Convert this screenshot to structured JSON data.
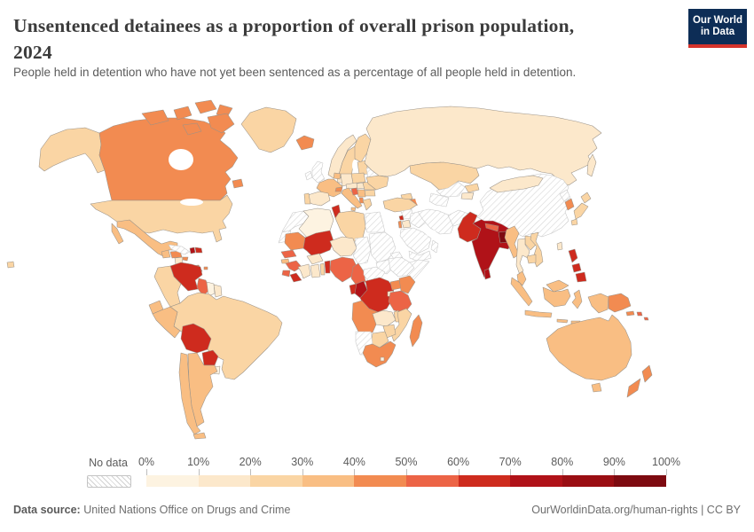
{
  "header": {
    "title_line1": "Unsentenced detainees as a proportion of overall prison population,",
    "title_line2": "2024",
    "subtitle": "People held in detention who have not yet been sentenced as a percentage of all people held in detention.",
    "logo": {
      "line1": "Our World",
      "line2": "in Data",
      "bg_color": "#0d2d56",
      "bar_color": "#d5332b"
    }
  },
  "legend": {
    "no_data_label": "No data",
    "tick_labels": [
      "0%",
      "10%",
      "20%",
      "30%",
      "40%",
      "50%",
      "60%",
      "70%",
      "80%",
      "90%",
      "100%"
    ]
  },
  "footer": {
    "source_label": "Data source:",
    "source_value": " United Nations Office on Drugs and Crime",
    "credit": "OurWorldinData.org/human-rights | CC BY"
  },
  "chart_data": {
    "type": "choropleth",
    "title": "Unsentenced detainees as a proportion of overall prison population, 2024",
    "unit": "%",
    "legend_position": "bottom",
    "bins": [
      {
        "range": "0-10%",
        "color": "#FDF3E1"
      },
      {
        "range": "10-20%",
        "color": "#FCE8CB"
      },
      {
        "range": "20-30%",
        "color": "#FAD5A4"
      },
      {
        "range": "30-40%",
        "color": "#F9BE83"
      },
      {
        "range": "40-50%",
        "color": "#F28B51"
      },
      {
        "range": "50-60%",
        "color": "#EC6446"
      },
      {
        "range": "60-70%",
        "color": "#CE2B1E"
      },
      {
        "range": "70-80%",
        "color": "#B01218"
      },
      {
        "range": "80-90%",
        "color": "#9A0E13"
      },
      {
        "range": "90-100%",
        "color": "#7D0A10"
      }
    ],
    "no_data": {
      "label": "No data",
      "pattern": "diagonal-hatch"
    },
    "countries": [
      {
        "id": "united-states",
        "name": "United States",
        "value_bin": "20-30%"
      },
      {
        "id": "canada",
        "name": "Canada",
        "value_bin": "40-50%"
      },
      {
        "id": "greenland",
        "name": "Greenland",
        "value_bin": "20-30%"
      },
      {
        "id": "mexico",
        "name": "Mexico",
        "value_bin": "30-40%"
      },
      {
        "id": "guatemala",
        "name": "Guatemala",
        "value_bin": "30-40%"
      },
      {
        "id": "honduras",
        "name": "Honduras",
        "value_bin": "40-50%"
      },
      {
        "id": "nicaragua",
        "name": "Nicaragua",
        "value_bin": "10-20%"
      },
      {
        "id": "costa-rica",
        "name": "Costa Rica",
        "value_bin": "20-30%"
      },
      {
        "id": "panama",
        "name": "Panama",
        "value_bin": "50-60%"
      },
      {
        "id": "cuba",
        "name": "Cuba",
        "value_bin": "No data"
      },
      {
        "id": "jamaica",
        "name": "Jamaica",
        "value_bin": "40-50%"
      },
      {
        "id": "haiti",
        "name": "Haiti",
        "value_bin": "70-80%"
      },
      {
        "id": "dominican-republic",
        "name": "Dominican Republic",
        "value_bin": "60-70%"
      },
      {
        "id": "trinidad-and-tobago",
        "name": "Trinidad and Tobago",
        "value_bin": "40-50%"
      },
      {
        "id": "venezuela",
        "name": "Venezuela",
        "value_bin": "60-70%"
      },
      {
        "id": "colombia",
        "name": "Colombia",
        "value_bin": "20-30%"
      },
      {
        "id": "guyana",
        "name": "Guyana",
        "value_bin": "50-60%"
      },
      {
        "id": "suriname",
        "name": "Suriname",
        "value_bin": "0-10%"
      },
      {
        "id": "french-guiana",
        "name": "French Guiana",
        "value_bin": "10-20%"
      },
      {
        "id": "ecuador",
        "name": "Ecuador",
        "value_bin": "30-40%"
      },
      {
        "id": "peru",
        "name": "Peru",
        "value_bin": "30-40%"
      },
      {
        "id": "brazil",
        "name": "Brazil",
        "value_bin": "20-30%"
      },
      {
        "id": "bolivia",
        "name": "Bolivia",
        "value_bin": "60-70%"
      },
      {
        "id": "paraguay",
        "name": "Paraguay",
        "value_bin": "60-70%"
      },
      {
        "id": "chile",
        "name": "Chile",
        "value_bin": "30-40%"
      },
      {
        "id": "argentina",
        "name": "Argentina",
        "value_bin": "30-40%"
      },
      {
        "id": "uruguay",
        "name": "Uruguay",
        "value_bin": "0-10%"
      },
      {
        "id": "iceland",
        "name": "Iceland",
        "value_bin": "40-50%"
      },
      {
        "id": "united-kingdom",
        "name": "United Kingdom",
        "value_bin": "No data"
      },
      {
        "id": "ireland",
        "name": "Ireland",
        "value_bin": "No data"
      },
      {
        "id": "norway",
        "name": "Norway",
        "value_bin": "10-20%"
      },
      {
        "id": "sweden",
        "name": "Sweden",
        "value_bin": "20-30%"
      },
      {
        "id": "finland",
        "name": "Finland",
        "value_bin": "20-30%"
      },
      {
        "id": "denmark",
        "name": "Denmark",
        "value_bin": "10-20%"
      },
      {
        "id": "germany",
        "name": "Germany",
        "value_bin": "10-20%"
      },
      {
        "id": "netherlands",
        "name": "Netherlands",
        "value_bin": "30-40%"
      },
      {
        "id": "france",
        "name": "France",
        "value_bin": "30-40%"
      },
      {
        "id": "switzerland",
        "name": "Switzerland",
        "value_bin": "40-50%"
      },
      {
        "id": "austria",
        "name": "Austria",
        "value_bin": "10-20%"
      },
      {
        "id": "spain",
        "name": "Spain",
        "value_bin": "10-20%"
      },
      {
        "id": "portugal",
        "name": "Portugal",
        "value_bin": "20-30%"
      },
      {
        "id": "italy",
        "name": "Italy",
        "value_bin": "30-40%"
      },
      {
        "id": "croatia",
        "name": "Croatia",
        "value_bin": "50-60%"
      },
      {
        "id": "serbia",
        "name": "Serbia",
        "value_bin": "30-40%"
      },
      {
        "id": "albania",
        "name": "Albania",
        "value_bin": "40-50%"
      },
      {
        "id": "greece",
        "name": "Greece",
        "value_bin": "20-30%"
      },
      {
        "id": "hungary",
        "name": "Hungary",
        "value_bin": "10-20%"
      },
      {
        "id": "poland",
        "name": "Poland",
        "value_bin": "20-30%"
      },
      {
        "id": "baltics",
        "name": "Baltic states",
        "value_bin": "20-30%"
      },
      {
        "id": "belarus",
        "name": "Belarus",
        "value_bin": "No data"
      },
      {
        "id": "ukraine",
        "name": "Ukraine",
        "value_bin": "20-30%"
      },
      {
        "id": "romania",
        "name": "Romania",
        "value_bin": "20-30%"
      },
      {
        "id": "bulgaria",
        "name": "Bulgaria",
        "value_bin": "20-30%"
      },
      {
        "id": "russia",
        "name": "Russia",
        "value_bin": "10-20%"
      },
      {
        "id": "kazakhstan",
        "name": "Kazakhstan",
        "value_bin": "20-30%"
      },
      {
        "id": "georgia",
        "name": "Georgia",
        "value_bin": "20-30%"
      },
      {
        "id": "armenia",
        "name": "Armenia",
        "value_bin": "50-60%"
      },
      {
        "id": "azerbaijan",
        "name": "Azerbaijan",
        "value_bin": "40-50%"
      },
      {
        "id": "turkey",
        "name": "Turkey",
        "value_bin": "20-30%"
      },
      {
        "id": "morocco",
        "name": "Morocco",
        "value_bin": "No data"
      },
      {
        "id": "western-sahara",
        "name": "Western Sahara",
        "value_bin": "No data"
      },
      {
        "id": "algeria",
        "name": "Algeria",
        "value_bin": "0-10%"
      },
      {
        "id": "tunisia",
        "name": "Tunisia",
        "value_bin": "60-70%"
      },
      {
        "id": "libya",
        "name": "Libya",
        "value_bin": "20-30%"
      },
      {
        "id": "egypt",
        "name": "Egypt",
        "value_bin": "No data"
      },
      {
        "id": "mauritania",
        "name": "Mauritania",
        "value_bin": "40-50%"
      },
      {
        "id": "mali",
        "name": "Mali",
        "value_bin": "60-70%"
      },
      {
        "id": "niger",
        "name": "Niger",
        "value_bin": "10-20%"
      },
      {
        "id": "chad",
        "name": "Chad",
        "value_bin": "No data"
      },
      {
        "id": "sudan",
        "name": "Sudan",
        "value_bin": "No data"
      },
      {
        "id": "south-sudan",
        "name": "South Sudan",
        "value_bin": "No data"
      },
      {
        "id": "eritrea",
        "name": "Eritrea",
        "value_bin": "No data"
      },
      {
        "id": "ethiopia",
        "name": "Ethiopia",
        "value_bin": "No data"
      },
      {
        "id": "somalia",
        "name": "Somalia",
        "value_bin": "No data"
      },
      {
        "id": "senegal",
        "name": "Senegal",
        "value_bin": "50-60%"
      },
      {
        "id": "guinea-bissau",
        "name": "Guinea-Bissau",
        "value_bin": "30-40%"
      },
      {
        "id": "guinea",
        "name": "Guinea",
        "value_bin": "50-60%"
      },
      {
        "id": "sierra-leone",
        "name": "Sierra Leone",
        "value_bin": "50-60%"
      },
      {
        "id": "liberia",
        "name": "Liberia",
        "value_bin": "60-70%"
      },
      {
        "id": "cote-divoire",
        "name": "Côte d'Ivoire",
        "value_bin": "10-20%"
      },
      {
        "id": "burkina-faso",
        "name": "Burkina Faso",
        "value_bin": "10-20%"
      },
      {
        "id": "ghana",
        "name": "Ghana",
        "value_bin": "10-20%"
      },
      {
        "id": "togo",
        "name": "Togo",
        "value_bin": "20-30%"
      },
      {
        "id": "benin",
        "name": "Benin",
        "value_bin": "60-70%"
      },
      {
        "id": "nigeria",
        "name": "Nigeria",
        "value_bin": "50-60%"
      },
      {
        "id": "cameroon",
        "name": "Cameroon",
        "value_bin": "50-60%"
      },
      {
        "id": "central-african-republic",
        "name": "Central African Republic",
        "value_bin": "No data"
      },
      {
        "id": "gabon",
        "name": "Gabon",
        "value_bin": "60-70%"
      },
      {
        "id": "republic-of-congo",
        "name": "Congo",
        "value_bin": "70-80%"
      },
      {
        "id": "drc",
        "name": "Democratic Republic of Congo",
        "value_bin": "60-70%"
      },
      {
        "id": "uganda",
        "name": "Uganda",
        "value_bin": "40-50%"
      },
      {
        "id": "kenya",
        "name": "Kenya",
        "value_bin": "40-50%"
      },
      {
        "id": "rwanda",
        "name": "Rwanda",
        "value_bin": "10-20%"
      },
      {
        "id": "tanzania",
        "name": "Tanzania",
        "value_bin": "50-60%"
      },
      {
        "id": "angola",
        "name": "Angola",
        "value_bin": "40-50%"
      },
      {
        "id": "zambia",
        "name": "Zambia",
        "value_bin": "10-20%"
      },
      {
        "id": "malawi",
        "name": "Malawi",
        "value_bin": "20-30%"
      },
      {
        "id": "mozambique",
        "name": "Mozambique",
        "value_bin": "20-30%"
      },
      {
        "id": "zimbabwe",
        "name": "Zimbabwe",
        "value_bin": "20-30%"
      },
      {
        "id": "botswana",
        "name": "Botswana",
        "value_bin": "20-30%"
      },
      {
        "id": "namibia",
        "name": "Namibia",
        "value_bin": "No data"
      },
      {
        "id": "south-africa",
        "name": "South Africa",
        "value_bin": "40-50%"
      },
      {
        "id": "lesotho",
        "name": "Lesotho",
        "value_bin": "0-10%"
      },
      {
        "id": "madagascar",
        "name": "Madagascar",
        "value_bin": "40-50%"
      },
      {
        "id": "syria",
        "name": "Syria",
        "value_bin": "No data"
      },
      {
        "id": "lebanon",
        "name": "Lebanon",
        "value_bin": "60-70%"
      },
      {
        "id": "israel",
        "name": "Israel",
        "value_bin": "40-50%"
      },
      {
        "id": "jordan",
        "name": "Jordan",
        "value_bin": "10-20%"
      },
      {
        "id": "iraq",
        "name": "Iraq",
        "value_bin": "No data"
      },
      {
        "id": "saudi-arabia",
        "name": "Saudi Arabia",
        "value_bin": "No data"
      },
      {
        "id": "yemen",
        "name": "Yemen",
        "value_bin": "No data"
      },
      {
        "id": "oman",
        "name": "Oman",
        "value_bin": "No data"
      },
      {
        "id": "iran",
        "name": "Iran",
        "value_bin": "No data"
      },
      {
        "id": "afghanistan",
        "name": "Afghanistan",
        "value_bin": "No data"
      },
      {
        "id": "turkmenistan",
        "name": "Turkmenistan",
        "value_bin": "No data"
      },
      {
        "id": "uzbekistan",
        "name": "Uzbekistan",
        "value_bin": "No data"
      },
      {
        "id": "kyrgyzstan",
        "name": "Kyrgyzstan",
        "value_bin": "20-30%"
      },
      {
        "id": "tajikistan",
        "name": "Tajikistan",
        "value_bin": "10-20%"
      },
      {
        "id": "pakistan",
        "name": "Pakistan",
        "value_bin": "60-70%"
      },
      {
        "id": "india",
        "name": "India",
        "value_bin": "70-80%"
      },
      {
        "id": "nepal",
        "name": "Nepal",
        "value_bin": "50-60%"
      },
      {
        "id": "bangladesh",
        "name": "Bangladesh",
        "value_bin": "90-100%"
      },
      {
        "id": "sri-lanka",
        "name": "Sri Lanka",
        "value_bin": "70-80%"
      },
      {
        "id": "myanmar",
        "name": "Myanmar",
        "value_bin": "30-40%"
      },
      {
        "id": "china",
        "name": "China",
        "value_bin": "No data"
      },
      {
        "id": "mongolia",
        "name": "Mongolia",
        "value_bin": "10-20%"
      },
      {
        "id": "north-korea",
        "name": "North Korea",
        "value_bin": "No data"
      },
      {
        "id": "south-korea",
        "name": "South Korea",
        "value_bin": "40-50%"
      },
      {
        "id": "japan",
        "name": "Japan",
        "value_bin": "20-30%"
      },
      {
        "id": "taiwan",
        "name": "Taiwan",
        "value_bin": "10-20%"
      },
      {
        "id": "vietnam",
        "name": "Vietnam",
        "value_bin": "20-30%"
      },
      {
        "id": "laos",
        "name": "Laos",
        "value_bin": "20-30%"
      },
      {
        "id": "thailand",
        "name": "Thailand",
        "value_bin": "10-20%"
      },
      {
        "id": "cambodia",
        "name": "Cambodia",
        "value_bin": "20-30%"
      },
      {
        "id": "malaysia",
        "name": "Malaysia",
        "value_bin": "30-40%"
      },
      {
        "id": "indonesia",
        "name": "Indonesia",
        "value_bin": "30-40%"
      },
      {
        "id": "philippines",
        "name": "Philippines",
        "value_bin": "60-70%"
      },
      {
        "id": "papua-new-guinea",
        "name": "Papua New Guinea",
        "value_bin": "40-50%"
      },
      {
        "id": "solomon-islands",
        "name": "Solomon Islands",
        "value_bin": "50-60%"
      },
      {
        "id": "australia",
        "name": "Australia",
        "value_bin": "30-40%"
      },
      {
        "id": "new-zealand",
        "name": "New Zealand",
        "value_bin": "40-50%"
      }
    ]
  }
}
